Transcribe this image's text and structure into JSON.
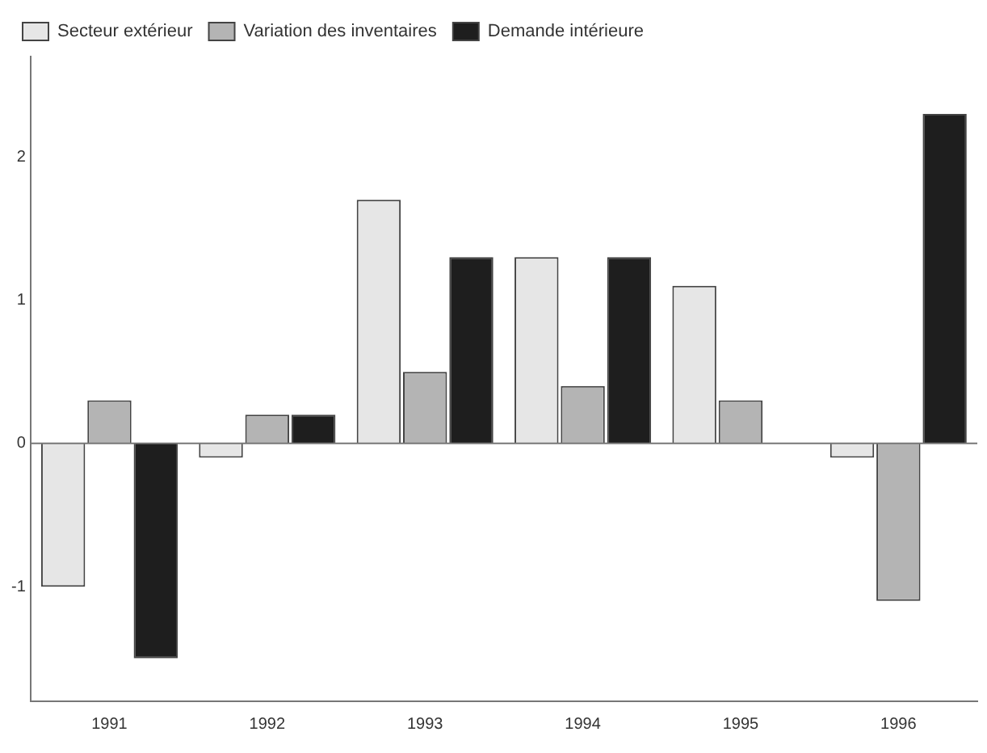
{
  "chart_data": {
    "type": "bar",
    "categories": [
      "1991",
      "1992",
      "1993",
      "1994",
      "1995",
      "1996"
    ],
    "series": [
      {
        "name": "Secteur extérieur",
        "color": "#e6e6e6",
        "values": [
          -1.0,
          -0.1,
          1.7,
          1.3,
          1.1,
          -0.1
        ]
      },
      {
        "name": "Variation des inventaires",
        "color": "#b4b4b4",
        "values": [
          0.3,
          0.2,
          0.5,
          0.4,
          0.3,
          -1.1
        ]
      },
      {
        "name": "Demande intérieure",
        "color": "#1e1e1e",
        "values": [
          -1.5,
          0.2,
          1.3,
          1.3,
          null,
          2.3
        ]
      }
    ],
    "ylim": [
      -1.8,
      2.7
    ],
    "yticks": [
      -1,
      0,
      1,
      2
    ],
    "ref_lines": [
      {
        "axis": "y",
        "value": 0
      }
    ],
    "grid": false,
    "legend": "top left"
  }
}
